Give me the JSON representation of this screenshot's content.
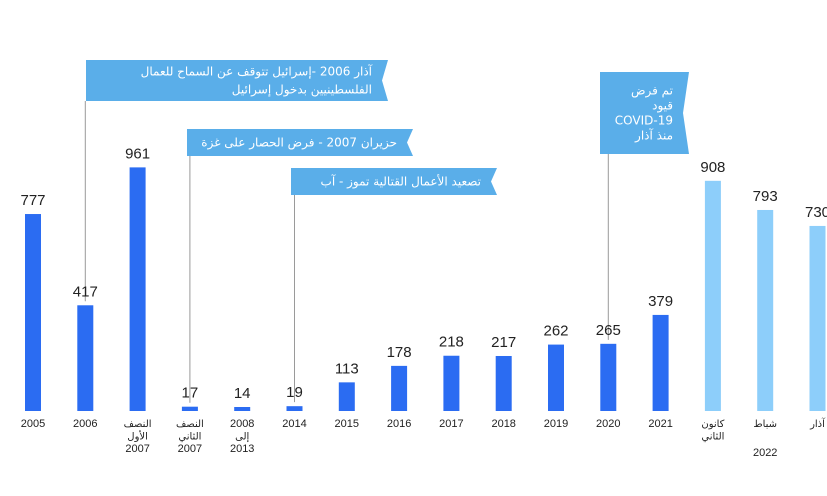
{
  "chart_data": {
    "type": "bar",
    "title": "",
    "xlabel": "",
    "ylabel": "",
    "ylim": [
      0,
      1000
    ],
    "grid": false,
    "colors": {
      "series": "#2b6cf2",
      "series_light": "#8dcefa",
      "annotation": "#5aaee9",
      "leader": "#9a9a9a"
    },
    "categories": [
      [
        "2005"
      ],
      [
        "2006"
      ],
      [
        "النصف",
        "الأول",
        "2007"
      ],
      [
        "النصف",
        "الثاني",
        "2007"
      ],
      [
        "2008",
        "إلى",
        "2013"
      ],
      [
        "2014"
      ],
      [
        "2015"
      ],
      [
        "2016"
      ],
      [
        "2017"
      ],
      [
        "2018"
      ],
      [
        "2019"
      ],
      [
        "2020"
      ],
      [
        "2021"
      ],
      [
        "كانون",
        "الثاني"
      ],
      [
        "شباط"
      ],
      [
        "آذار"
      ]
    ],
    "values": [
      777,
      417,
      961,
      17,
      14,
      19,
      113,
      178,
      218,
      217,
      262,
      265,
      379,
      908,
      793,
      730
    ],
    "value_labels": [
      "777",
      "417",
      "961",
      "17",
      "14",
      "19",
      "113",
      "178",
      "218",
      "217",
      "262",
      "265",
      "379",
      "908",
      "793",
      "730"
    ],
    "highlight_from_index": 13,
    "group_labels": [
      {
        "label": "2022",
        "from_index": 13,
        "to_index": 15
      }
    ],
    "annotations": [
      {
        "bar_index": 1,
        "lines": [
          "آذار 2006 -إسرائيل تتوقف عن السماح للعمال",
          "الفلسطينيين بدخول إسرائيل"
        ]
      },
      {
        "bar_index": 3,
        "lines": [
          "حزيران 2007 - فرض الحصار على غزة"
        ]
      },
      {
        "bar_index": 5,
        "lines": [
          "تصعيد الأعمال القتالية تموز - آب"
        ]
      },
      {
        "bar_index": 11,
        "lines": [
          "تم فرض",
          "قيود",
          "COVID-19",
          "منذ آذار"
        ]
      }
    ]
  }
}
